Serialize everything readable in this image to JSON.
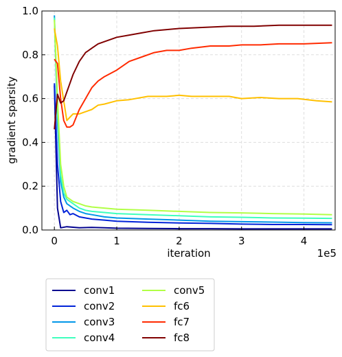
{
  "chart_data": {
    "type": "line",
    "xlabel": "iteration",
    "ylabel": "gradient sparsity",
    "x_offset_text": "1e5",
    "xlim": [
      -20000,
      450000
    ],
    "ylim": [
      0.0,
      1.0
    ],
    "x_ticks": [
      0,
      100000,
      200000,
      300000,
      400000
    ],
    "x_tick_labels": [
      "0",
      "1",
      "2",
      "3",
      "4"
    ],
    "y_ticks": [
      0.0,
      0.2,
      0.4,
      0.6,
      0.8,
      1.0
    ],
    "y_tick_labels": [
      "0.0",
      "0.2",
      "0.4",
      "0.6",
      "0.8",
      "1.0"
    ],
    "grid": true,
    "legend_position": "below plot, two columns",
    "legend_columns": 2,
    "series": [
      {
        "name": "conv1",
        "color": "#00008f",
        "points": [
          [
            0,
            0.66
          ],
          [
            5000,
            0.1
          ],
          [
            10000,
            0.01
          ],
          [
            20000,
            0.015
          ],
          [
            40000,
            0.01
          ],
          [
            60000,
            0.012
          ],
          [
            80000,
            0.01
          ],
          [
            100000,
            0.008
          ],
          [
            150000,
            0.007
          ],
          [
            200000,
            0.006
          ],
          [
            250000,
            0.006
          ],
          [
            300000,
            0.005
          ],
          [
            350000,
            0.005
          ],
          [
            400000,
            0.005
          ],
          [
            445000,
            0.005
          ]
        ]
      },
      {
        "name": "conv2",
        "color": "#0022d8",
        "points": [
          [
            0,
            0.67
          ],
          [
            5000,
            0.3
          ],
          [
            10000,
            0.13
          ],
          [
            15000,
            0.08
          ],
          [
            20000,
            0.09
          ],
          [
            25000,
            0.07
          ],
          [
            30000,
            0.075
          ],
          [
            40000,
            0.06
          ],
          [
            50000,
            0.055
          ],
          [
            60000,
            0.05
          ],
          [
            80000,
            0.045
          ],
          [
            100000,
            0.04
          ],
          [
            150000,
            0.035
          ],
          [
            200000,
            0.032
          ],
          [
            250000,
            0.03
          ],
          [
            300000,
            0.027
          ],
          [
            350000,
            0.025
          ],
          [
            400000,
            0.025
          ],
          [
            445000,
            0.024
          ]
        ]
      },
      {
        "name": "conv3",
        "color": "#0096e8",
        "points": [
          [
            0,
            0.98
          ],
          [
            5000,
            0.5
          ],
          [
            10000,
            0.22
          ],
          [
            15000,
            0.15
          ],
          [
            20000,
            0.12
          ],
          [
            30000,
            0.1
          ],
          [
            40000,
            0.085
          ],
          [
            50000,
            0.075
          ],
          [
            60000,
            0.07
          ],
          [
            80000,
            0.06
          ],
          [
            100000,
            0.055
          ],
          [
            150000,
            0.05
          ],
          [
            200000,
            0.045
          ],
          [
            250000,
            0.04
          ],
          [
            300000,
            0.038
          ],
          [
            350000,
            0.036
          ],
          [
            400000,
            0.034
          ],
          [
            445000,
            0.033
          ]
        ]
      },
      {
        "name": "conv4",
        "color": "#3dffbd",
        "points": [
          [
            0,
            0.97
          ],
          [
            5000,
            0.55
          ],
          [
            10000,
            0.25
          ],
          [
            15000,
            0.17
          ],
          [
            20000,
            0.14
          ],
          [
            30000,
            0.12
          ],
          [
            40000,
            0.1
          ],
          [
            50000,
            0.09
          ],
          [
            60000,
            0.085
          ],
          [
            80000,
            0.08
          ],
          [
            100000,
            0.075
          ],
          [
            150000,
            0.07
          ],
          [
            200000,
            0.065
          ],
          [
            250000,
            0.06
          ],
          [
            300000,
            0.058
          ],
          [
            350000,
            0.055
          ],
          [
            400000,
            0.054
          ],
          [
            445000,
            0.053
          ]
        ]
      },
      {
        "name": "conv5",
        "color": "#b1ff45",
        "points": [
          [
            0,
            0.96
          ],
          [
            5000,
            0.6
          ],
          [
            10000,
            0.3
          ],
          [
            15000,
            0.2
          ],
          [
            20000,
            0.15
          ],
          [
            30000,
            0.13
          ],
          [
            40000,
            0.12
          ],
          [
            50000,
            0.11
          ],
          [
            60000,
            0.105
          ],
          [
            80000,
            0.1
          ],
          [
            100000,
            0.095
          ],
          [
            150000,
            0.09
          ],
          [
            200000,
            0.085
          ],
          [
            250000,
            0.08
          ],
          [
            300000,
            0.078
          ],
          [
            350000,
            0.075
          ],
          [
            400000,
            0.073
          ],
          [
            445000,
            0.07
          ]
        ]
      },
      {
        "name": "fc6",
        "color": "#ffc000",
        "points": [
          [
            0,
            0.92
          ],
          [
            5000,
            0.84
          ],
          [
            10000,
            0.68
          ],
          [
            20000,
            0.5
          ],
          [
            30000,
            0.53
          ],
          [
            40000,
            0.53
          ],
          [
            50000,
            0.54
          ],
          [
            60000,
            0.55
          ],
          [
            70000,
            0.57
          ],
          [
            80000,
            0.575
          ],
          [
            100000,
            0.59
          ],
          [
            120000,
            0.595
          ],
          [
            150000,
            0.61
          ],
          [
            180000,
            0.61
          ],
          [
            200000,
            0.615
          ],
          [
            220000,
            0.61
          ],
          [
            250000,
            0.61
          ],
          [
            280000,
            0.61
          ],
          [
            300000,
            0.6
          ],
          [
            330000,
            0.605
          ],
          [
            360000,
            0.6
          ],
          [
            390000,
            0.6
          ],
          [
            420000,
            0.59
          ],
          [
            445000,
            0.585
          ]
        ]
      },
      {
        "name": "fc7",
        "color": "#ff2a00",
        "points": [
          [
            0,
            0.78
          ],
          [
            5000,
            0.76
          ],
          [
            10000,
            0.6
          ],
          [
            15000,
            0.5
          ],
          [
            20000,
            0.47
          ],
          [
            25000,
            0.47
          ],
          [
            30000,
            0.48
          ],
          [
            40000,
            0.55
          ],
          [
            50000,
            0.6
          ],
          [
            60000,
            0.65
          ],
          [
            70000,
            0.68
          ],
          [
            80000,
            0.7
          ],
          [
            100000,
            0.73
          ],
          [
            120000,
            0.77
          ],
          [
            140000,
            0.79
          ],
          [
            160000,
            0.81
          ],
          [
            180000,
            0.82
          ],
          [
            200000,
            0.82
          ],
          [
            220000,
            0.83
          ],
          [
            250000,
            0.84
          ],
          [
            280000,
            0.84
          ],
          [
            300000,
            0.845
          ],
          [
            330000,
            0.845
          ],
          [
            360000,
            0.85
          ],
          [
            400000,
            0.85
          ],
          [
            445000,
            0.855
          ]
        ]
      },
      {
        "name": "fc8",
        "color": "#800000",
        "points": [
          [
            0,
            0.46
          ],
          [
            5000,
            0.62
          ],
          [
            10000,
            0.58
          ],
          [
            15000,
            0.59
          ],
          [
            20000,
            0.63
          ],
          [
            30000,
            0.71
          ],
          [
            40000,
            0.77
          ],
          [
            50000,
            0.81
          ],
          [
            60000,
            0.83
          ],
          [
            70000,
            0.85
          ],
          [
            80000,
            0.86
          ],
          [
            100000,
            0.88
          ],
          [
            120000,
            0.89
          ],
          [
            140000,
            0.9
          ],
          [
            160000,
            0.91
          ],
          [
            180000,
            0.915
          ],
          [
            200000,
            0.92
          ],
          [
            240000,
            0.925
          ],
          [
            280000,
            0.93
          ],
          [
            320000,
            0.93
          ],
          [
            360000,
            0.935
          ],
          [
            400000,
            0.935
          ],
          [
            445000,
            0.935
          ]
        ]
      }
    ]
  }
}
